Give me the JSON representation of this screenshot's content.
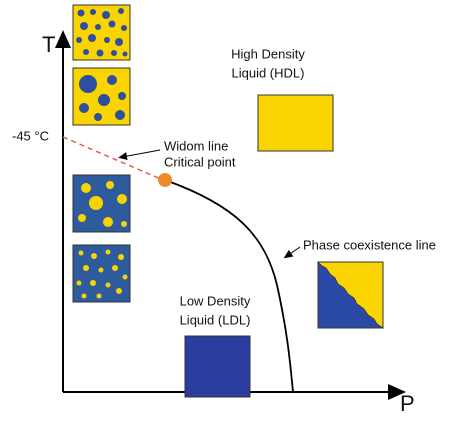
{
  "axes": {
    "y_label": "T",
    "x_label": "P",
    "temperature_mark": "-45 °C"
  },
  "labels": {
    "widom": "Widom line",
    "critical": "Critical point",
    "hdl": [
      "High Density",
      "Liquid (HDL)"
    ],
    "ldl": [
      "Low Density",
      "Liquid (LDL)"
    ],
    "coexistence": "Phase coexistence line"
  }
}
